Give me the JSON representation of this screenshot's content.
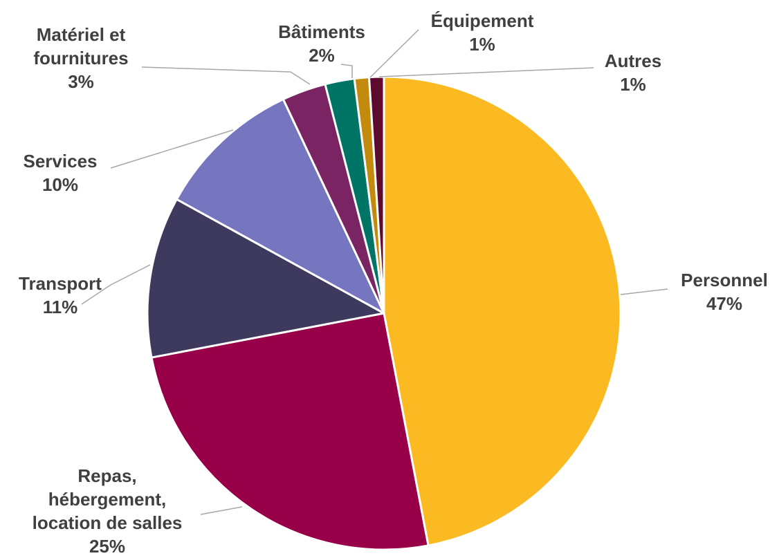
{
  "chart_data": {
    "type": "pie",
    "categories": [
      "Personnel",
      "Repas,\nhébergement,\nlocation de salles",
      "Transport",
      "Services",
      "Matériel et\nfournitures",
      "Bâtiments",
      "Équipement",
      "Autres"
    ],
    "values": [
      47,
      25,
      11,
      10,
      3,
      2,
      1,
      1
    ],
    "value_labels": [
      "47%",
      "25%",
      "11%",
      "10%",
      "3%",
      "2%",
      "1%",
      "1%"
    ],
    "colors": [
      "#fbba22",
      "#970048",
      "#3e3a5e",
      "#7575c0",
      "#7b2463",
      "#007565",
      "#c28b0e",
      "#5c0a2e"
    ]
  }
}
